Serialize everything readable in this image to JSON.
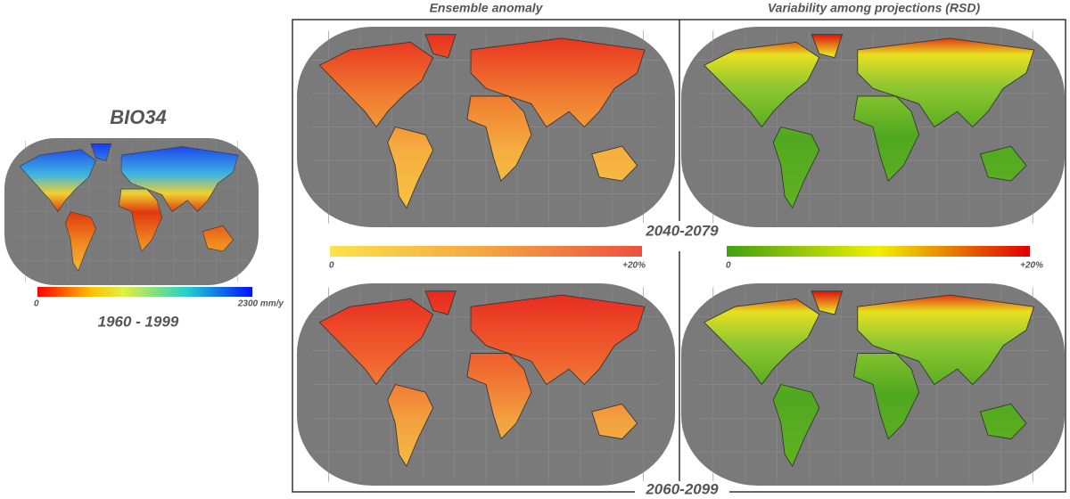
{
  "header": {
    "title": "BIO34",
    "baseline_period": "1960 - 1999"
  },
  "baseline_colorbar": {
    "min_label": "0",
    "max_label": "2300 mm/y"
  },
  "columns": [
    "Ensemble anomaly",
    "Variability among projections (RSD)"
  ],
  "periods": [
    "2040-2079",
    "2060-2099"
  ],
  "colorbars": [
    {
      "min_label": "0",
      "max_label": "+20%"
    },
    {
      "min_label": "0",
      "max_label": "+20%"
    }
  ]
}
